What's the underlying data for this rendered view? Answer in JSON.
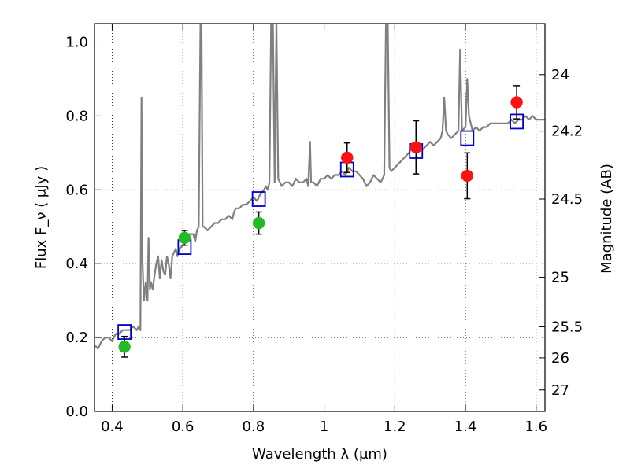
{
  "chart_data": {
    "type": "scatter",
    "title": "",
    "xlabel": "Wavelength  λ (μm)",
    "ylabel": "Flux  F_ν  ( μJy )",
    "ylabel_right": "Magnitude (AB)",
    "xlim": [
      0.35,
      1.625
    ],
    "ylim": [
      0.0,
      1.05
    ],
    "grid": true,
    "grid_style": "dotted",
    "x_ticks": [
      0.4,
      0.6,
      0.8,
      1.0,
      1.2,
      1.4,
      1.6
    ],
    "x_tick_labels": [
      "0.4",
      "0.6",
      "0.8",
      "1",
      "1.2",
      "1.4",
      "1.6"
    ],
    "y_ticks": [
      0.0,
      0.2,
      0.4,
      0.6,
      0.8,
      1.0
    ],
    "y_tick_labels": [
      "0.0",
      "0.2",
      "0.4",
      "0.6",
      "0.8",
      "1.0"
    ],
    "right_axis": {
      "scale": "AB magnitude",
      "ticks": [
        {
          "label": "24",
          "flux": 0.912
        },
        {
          "label": "24.2",
          "flux": 0.759
        },
        {
          "label": "24.5",
          "flux": 0.575
        },
        {
          "label": "25",
          "flux": 0.363
        },
        {
          "label": "25.5",
          "flux": 0.229
        },
        {
          "label": "26",
          "flux": 0.145
        },
        {
          "label": "27",
          "flux": 0.058
        }
      ]
    },
    "series": [
      {
        "kind": "line",
        "color": "#808080",
        "points": [
          [
            0.35,
            0.18
          ],
          [
            0.36,
            0.17
          ],
          [
            0.37,
            0.19
          ],
          [
            0.38,
            0.2
          ],
          [
            0.39,
            0.2
          ],
          [
            0.4,
            0.19
          ],
          [
            0.41,
            0.21
          ],
          [
            0.42,
            0.21
          ],
          [
            0.43,
            0.22
          ],
          [
            0.44,
            0.22
          ],
          [
            0.45,
            0.22
          ],
          [
            0.46,
            0.23
          ],
          [
            0.47,
            0.22
          ],
          [
            0.475,
            0.23
          ],
          [
            0.48,
            0.22
          ],
          [
            0.483,
            0.85
          ],
          [
            0.486,
            0.4
          ],
          [
            0.49,
            0.3
          ],
          [
            0.495,
            0.35
          ],
          [
            0.5,
            0.3
          ],
          [
            0.503,
            0.47
          ],
          [
            0.507,
            0.33
          ],
          [
            0.51,
            0.35
          ],
          [
            0.515,
            0.33
          ],
          [
            0.52,
            0.37
          ],
          [
            0.525,
            0.4
          ],
          [
            0.53,
            0.42
          ],
          [
            0.535,
            0.36
          ],
          [
            0.54,
            0.41
          ],
          [
            0.545,
            0.38
          ],
          [
            0.55,
            0.37
          ],
          [
            0.555,
            0.42
          ],
          [
            0.56,
            0.4
          ],
          [
            0.565,
            0.36
          ],
          [
            0.57,
            0.42
          ],
          [
            0.58,
            0.44
          ],
          [
            0.585,
            0.42
          ],
          [
            0.59,
            0.44
          ],
          [
            0.6,
            0.45
          ],
          [
            0.61,
            0.46
          ],
          [
            0.62,
            0.48
          ],
          [
            0.63,
            0.48
          ],
          [
            0.635,
            0.46
          ],
          [
            0.64,
            0.49
          ],
          [
            0.645,
            0.5
          ],
          [
            0.65,
            1.05
          ],
          [
            0.653,
            1.05
          ],
          [
            0.656,
            0.5
          ],
          [
            0.66,
            0.5
          ],
          [
            0.67,
            0.49
          ],
          [
            0.68,
            0.5
          ],
          [
            0.69,
            0.51
          ],
          [
            0.7,
            0.51
          ],
          [
            0.71,
            0.52
          ],
          [
            0.72,
            0.52
          ],
          [
            0.73,
            0.53
          ],
          [
            0.74,
            0.52
          ],
          [
            0.745,
            0.54
          ],
          [
            0.75,
            0.55
          ],
          [
            0.76,
            0.55
          ],
          [
            0.77,
            0.56
          ],
          [
            0.78,
            0.56
          ],
          [
            0.79,
            0.57
          ],
          [
            0.8,
            0.58
          ],
          [
            0.81,
            0.57
          ],
          [
            0.82,
            0.59
          ],
          [
            0.83,
            0.6
          ],
          [
            0.835,
            0.61
          ],
          [
            0.84,
            0.6
          ],
          [
            0.845,
            0.62
          ],
          [
            0.85,
            1.05
          ],
          [
            0.855,
            1.05
          ],
          [
            0.86,
            0.62
          ],
          [
            0.865,
            1.05
          ],
          [
            0.87,
            0.63
          ],
          [
            0.875,
            0.62
          ],
          [
            0.88,
            0.61
          ],
          [
            0.89,
            0.62
          ],
          [
            0.9,
            0.62
          ],
          [
            0.91,
            0.61
          ],
          [
            0.92,
            0.63
          ],
          [
            0.93,
            0.62
          ],
          [
            0.94,
            0.62
          ],
          [
            0.95,
            0.63
          ],
          [
            0.955,
            0.61
          ],
          [
            0.96,
            0.73
          ],
          [
            0.963,
            0.62
          ],
          [
            0.97,
            0.62
          ],
          [
            0.98,
            0.61
          ],
          [
            0.99,
            0.63
          ],
          [
            1.0,
            0.63
          ],
          [
            1.01,
            0.64
          ],
          [
            1.02,
            0.63
          ],
          [
            1.03,
            0.64
          ],
          [
            1.04,
            0.64
          ],
          [
            1.05,
            0.65
          ],
          [
            1.06,
            0.64
          ],
          [
            1.07,
            0.66
          ],
          [
            1.08,
            0.65
          ],
          [
            1.09,
            0.65
          ],
          [
            1.1,
            0.64
          ],
          [
            1.11,
            0.63
          ],
          [
            1.12,
            0.61
          ],
          [
            1.13,
            0.62
          ],
          [
            1.14,
            0.64
          ],
          [
            1.15,
            0.63
          ],
          [
            1.16,
            0.62
          ],
          [
            1.17,
            0.64
          ],
          [
            1.175,
            1.05
          ],
          [
            1.18,
            1.05
          ],
          [
            1.185,
            0.66
          ],
          [
            1.19,
            0.65
          ],
          [
            1.2,
            0.66
          ],
          [
            1.21,
            0.67
          ],
          [
            1.22,
            0.68
          ],
          [
            1.23,
            0.69
          ],
          [
            1.24,
            0.7
          ],
          [
            1.25,
            0.72
          ],
          [
            1.26,
            0.71
          ],
          [
            1.27,
            0.72
          ],
          [
            1.28,
            0.71
          ],
          [
            1.29,
            0.72
          ],
          [
            1.3,
            0.73
          ],
          [
            1.31,
            0.72
          ],
          [
            1.32,
            0.73
          ],
          [
            1.33,
            0.74
          ],
          [
            1.335,
            0.76
          ],
          [
            1.34,
            0.85
          ],
          [
            1.345,
            0.76
          ],
          [
            1.35,
            0.75
          ],
          [
            1.36,
            0.74
          ],
          [
            1.37,
            0.75
          ],
          [
            1.38,
            0.76
          ],
          [
            1.385,
            0.98
          ],
          [
            1.39,
            0.76
          ],
          [
            1.4,
            0.77
          ],
          [
            1.405,
            0.9
          ],
          [
            1.41,
            0.8
          ],
          [
            1.42,
            0.76
          ],
          [
            1.43,
            0.77
          ],
          [
            1.44,
            0.76
          ],
          [
            1.45,
            0.77
          ],
          [
            1.46,
            0.77
          ],
          [
            1.47,
            0.78
          ],
          [
            1.48,
            0.78
          ],
          [
            1.49,
            0.78
          ],
          [
            1.5,
            0.78
          ],
          [
            1.51,
            0.78
          ],
          [
            1.52,
            0.78
          ],
          [
            1.53,
            0.79
          ],
          [
            1.54,
            0.78
          ],
          [
            1.55,
            0.79
          ],
          [
            1.56,
            0.79
          ],
          [
            1.57,
            0.8
          ],
          [
            1.58,
            0.79
          ],
          [
            1.59,
            0.8
          ],
          [
            1.6,
            0.79
          ],
          [
            1.61,
            0.79
          ],
          [
            1.625,
            0.79
          ]
        ]
      },
      {
        "kind": "squares",
        "color": "#0000cc",
        "points": [
          [
            0.435,
            0.215
          ],
          [
            0.605,
            0.445
          ],
          [
            0.815,
            0.575
          ],
          [
            1.065,
            0.655
          ],
          [
            1.26,
            0.705
          ],
          [
            1.405,
            0.74
          ],
          [
            1.545,
            0.785
          ]
        ]
      },
      {
        "kind": "points",
        "color": "#22bb22",
        "points": [
          [
            0.435,
            0.175,
            0.028
          ],
          [
            0.605,
            0.47,
            0.02
          ],
          [
            0.815,
            0.51,
            0.03
          ]
        ]
      },
      {
        "kind": "points",
        "color": "#ff1111",
        "points": [
          [
            1.065,
            0.687,
            0.04
          ],
          [
            1.26,
            0.715,
            0.072
          ],
          [
            1.405,
            0.638,
            0.062
          ],
          [
            1.545,
            0.837,
            0.045
          ]
        ]
      }
    ]
  }
}
